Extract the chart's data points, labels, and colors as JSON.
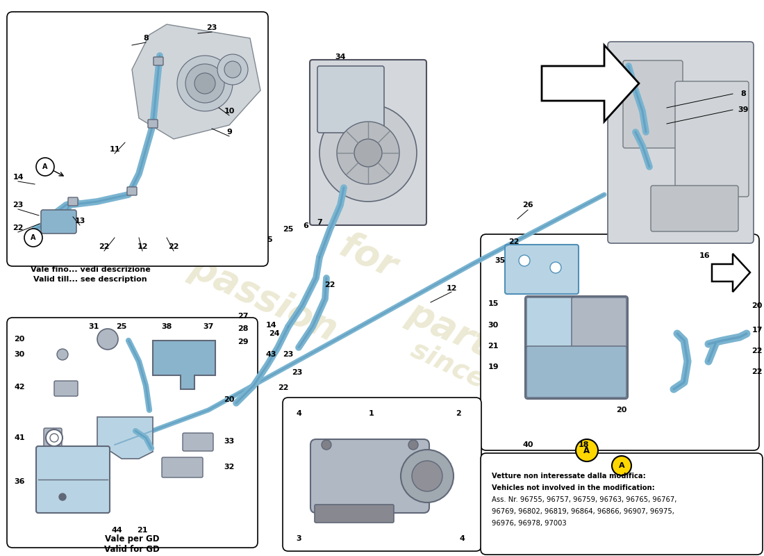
{
  "bg_color": "#ffffff",
  "hose_color": "#7ab4d0",
  "hose_edge": "#5090b8",
  "hose_lw": 5,
  "part_blue": "#8ab4cc",
  "part_blue_light": "#b8d4e4",
  "metal_gray": "#b0b8c4",
  "dark_gray": "#606878",
  "line_color": "#000000",
  "wm_color": "#ddd8b0",
  "note_line1": "Vetture non interessate dalla modifica:",
  "note_line2": "Vehicles not involved in the modification:",
  "note_line3": "Ass. Nr. 96755, 96757, 96759, 96763, 96765, 96767,",
  "note_line4": "96769, 96802, 96819, 96864, 96866, 96907, 96975,",
  "note_line5": "96976, 96978, 97003",
  "caption_tl1": "Vale fino... vedi descrizione",
  "caption_tl2": "Valid till... see description",
  "caption_bl1": "Vale per GD",
  "caption_bl2": "Valid for GD",
  "arrow_color": "#000000"
}
